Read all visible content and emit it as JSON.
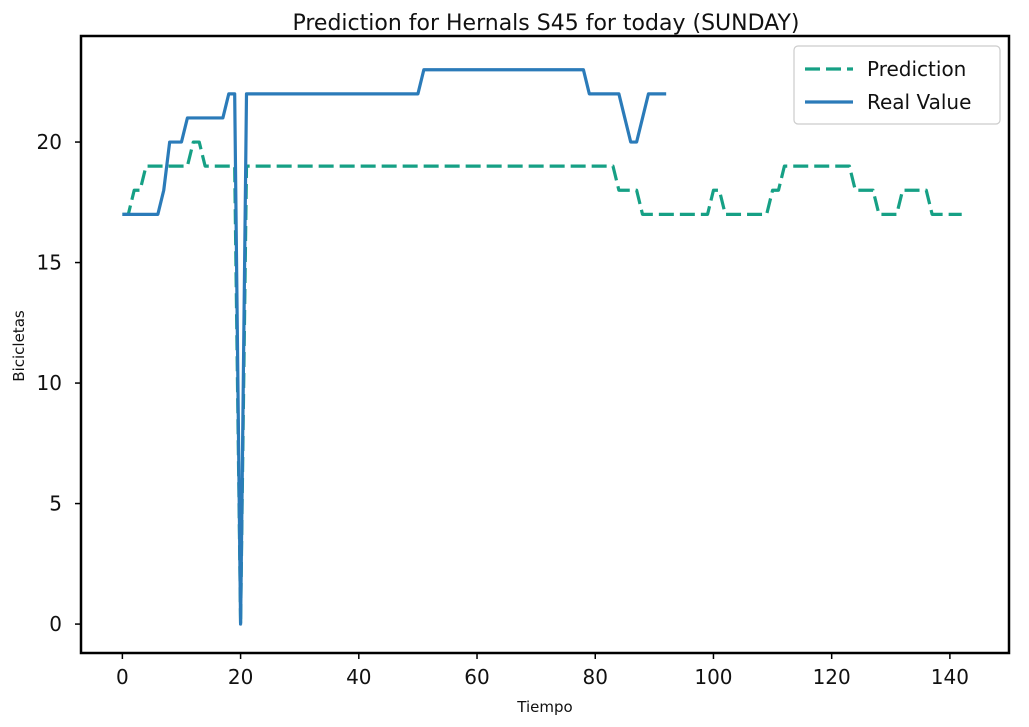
{
  "chart_data": {
    "type": "line",
    "title": "Prediction for Hernals S45 for today (SUNDAY)",
    "xlabel": "Tiempo",
    "ylabel": "Bicicletas",
    "xlim": [
      -7,
      150
    ],
    "ylim": [
      -1.2,
      24.4
    ],
    "xticks": [
      0,
      20,
      40,
      60,
      80,
      100,
      120,
      140
    ],
    "yticks": [
      0,
      5,
      10,
      15,
      20
    ],
    "grid": false,
    "legend_position": "top-right",
    "series": [
      {
        "name": "Prediction",
        "color": "#16a085",
        "style": "dashed",
        "x": [
          0,
          1,
          2,
          3,
          4,
          5,
          6,
          7,
          8,
          9,
          10,
          11,
          12,
          13,
          14,
          15,
          16,
          17,
          18,
          19,
          20,
          21,
          22,
          30,
          40,
          50,
          60,
          70,
          80,
          81,
          82,
          83,
          84,
          85,
          86,
          87,
          88,
          89,
          90,
          95,
          99,
          100,
          101,
          102,
          103,
          105,
          108,
          109,
          110,
          111,
          112,
          113,
          115,
          120,
          122,
          123,
          124,
          125,
          126,
          127,
          128,
          129,
          130,
          131,
          132,
          133,
          134,
          135,
          136,
          137,
          138,
          140,
          142
        ],
        "y": [
          17,
          17,
          18,
          18,
          19,
          19,
          19,
          19,
          19,
          19,
          19,
          19,
          20,
          20,
          19,
          19,
          19,
          19,
          19,
          19,
          0,
          19,
          19,
          19,
          19,
          19,
          19,
          19,
          19,
          19,
          19,
          19,
          18,
          18,
          18,
          18,
          17,
          17,
          17,
          17,
          17,
          18,
          18,
          17,
          17,
          17,
          17,
          17,
          18,
          18,
          19,
          19,
          19,
          19,
          19,
          19,
          18,
          18,
          18,
          18,
          17,
          17,
          17,
          17,
          18,
          18,
          18,
          18,
          18,
          17,
          17,
          17,
          17
        ]
      },
      {
        "name": "Real Value",
        "color": "#2b7bb9",
        "style": "solid",
        "x": [
          0,
          1,
          2,
          3,
          4,
          5,
          6,
          7,
          8,
          9,
          10,
          11,
          12,
          13,
          14,
          15,
          16,
          17,
          18,
          19,
          20,
          21,
          22,
          30,
          40,
          50,
          51,
          52,
          60,
          70,
          78,
          79,
          80,
          81,
          82,
          83,
          84,
          85,
          86,
          87,
          88,
          89,
          90,
          91,
          92
        ],
        "y": [
          17,
          17,
          17,
          17,
          17,
          17,
          17,
          18,
          20,
          20,
          20,
          21,
          21,
          21,
          21,
          21,
          21,
          21,
          22,
          22,
          0,
          22,
          22,
          22,
          22,
          22,
          23,
          23,
          23,
          23,
          23,
          22,
          22,
          22,
          22,
          22,
          22,
          21,
          20,
          20,
          21,
          22,
          22,
          22,
          22
        ]
      }
    ]
  }
}
